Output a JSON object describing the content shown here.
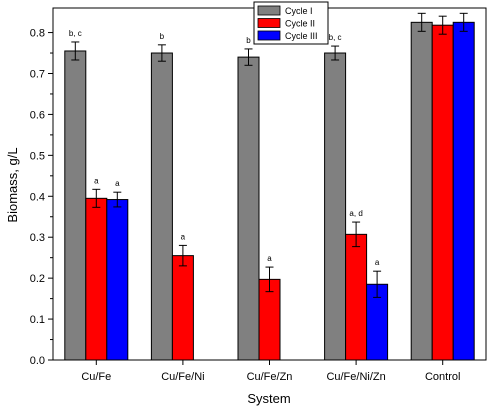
{
  "chart_data": {
    "type": "bar",
    "xlabel": "System",
    "ylabel": "Biomass, g/L",
    "categories": [
      "Cu/Fe",
      "Cu/Fe/Ni",
      "Cu/Fe/Zn",
      "Cu/Fe/Ni/Zn",
      "Control"
    ],
    "ylim": [
      0,
      0.86
    ],
    "yticks": [
      "0.0",
      "0.1",
      "0.2",
      "0.3",
      "0.4",
      "0.5",
      "0.6",
      "0.7",
      "0.8"
    ],
    "grid": false,
    "legend_position": "top-center",
    "series": [
      {
        "name": "Cycle I",
        "color": "#808080",
        "values": [
          0.755,
          0.75,
          0.74,
          0.75,
          0.825
        ],
        "errors": [
          0.022,
          0.02,
          0.02,
          0.017,
          0.022
        ],
        "labels": [
          "b, c",
          "b",
          "b",
          "b, c",
          ""
        ]
      },
      {
        "name": "Cycle II",
        "color": "#ff0000",
        "values": [
          0.395,
          0.255,
          0.197,
          0.307,
          0.818
        ],
        "errors": [
          0.022,
          0.025,
          0.03,
          0.03,
          0.022
        ],
        "labels": [
          "a",
          "a",
          "a",
          "a, d",
          ""
        ]
      },
      {
        "name": "Cycle III",
        "color": "#0000ff",
        "values": [
          0.392,
          null,
          null,
          0.185,
          0.825
        ],
        "errors": [
          0.018,
          null,
          null,
          0.032,
          0.022
        ],
        "labels": [
          "a",
          "",
          "",
          "a",
          ""
        ]
      }
    ]
  }
}
